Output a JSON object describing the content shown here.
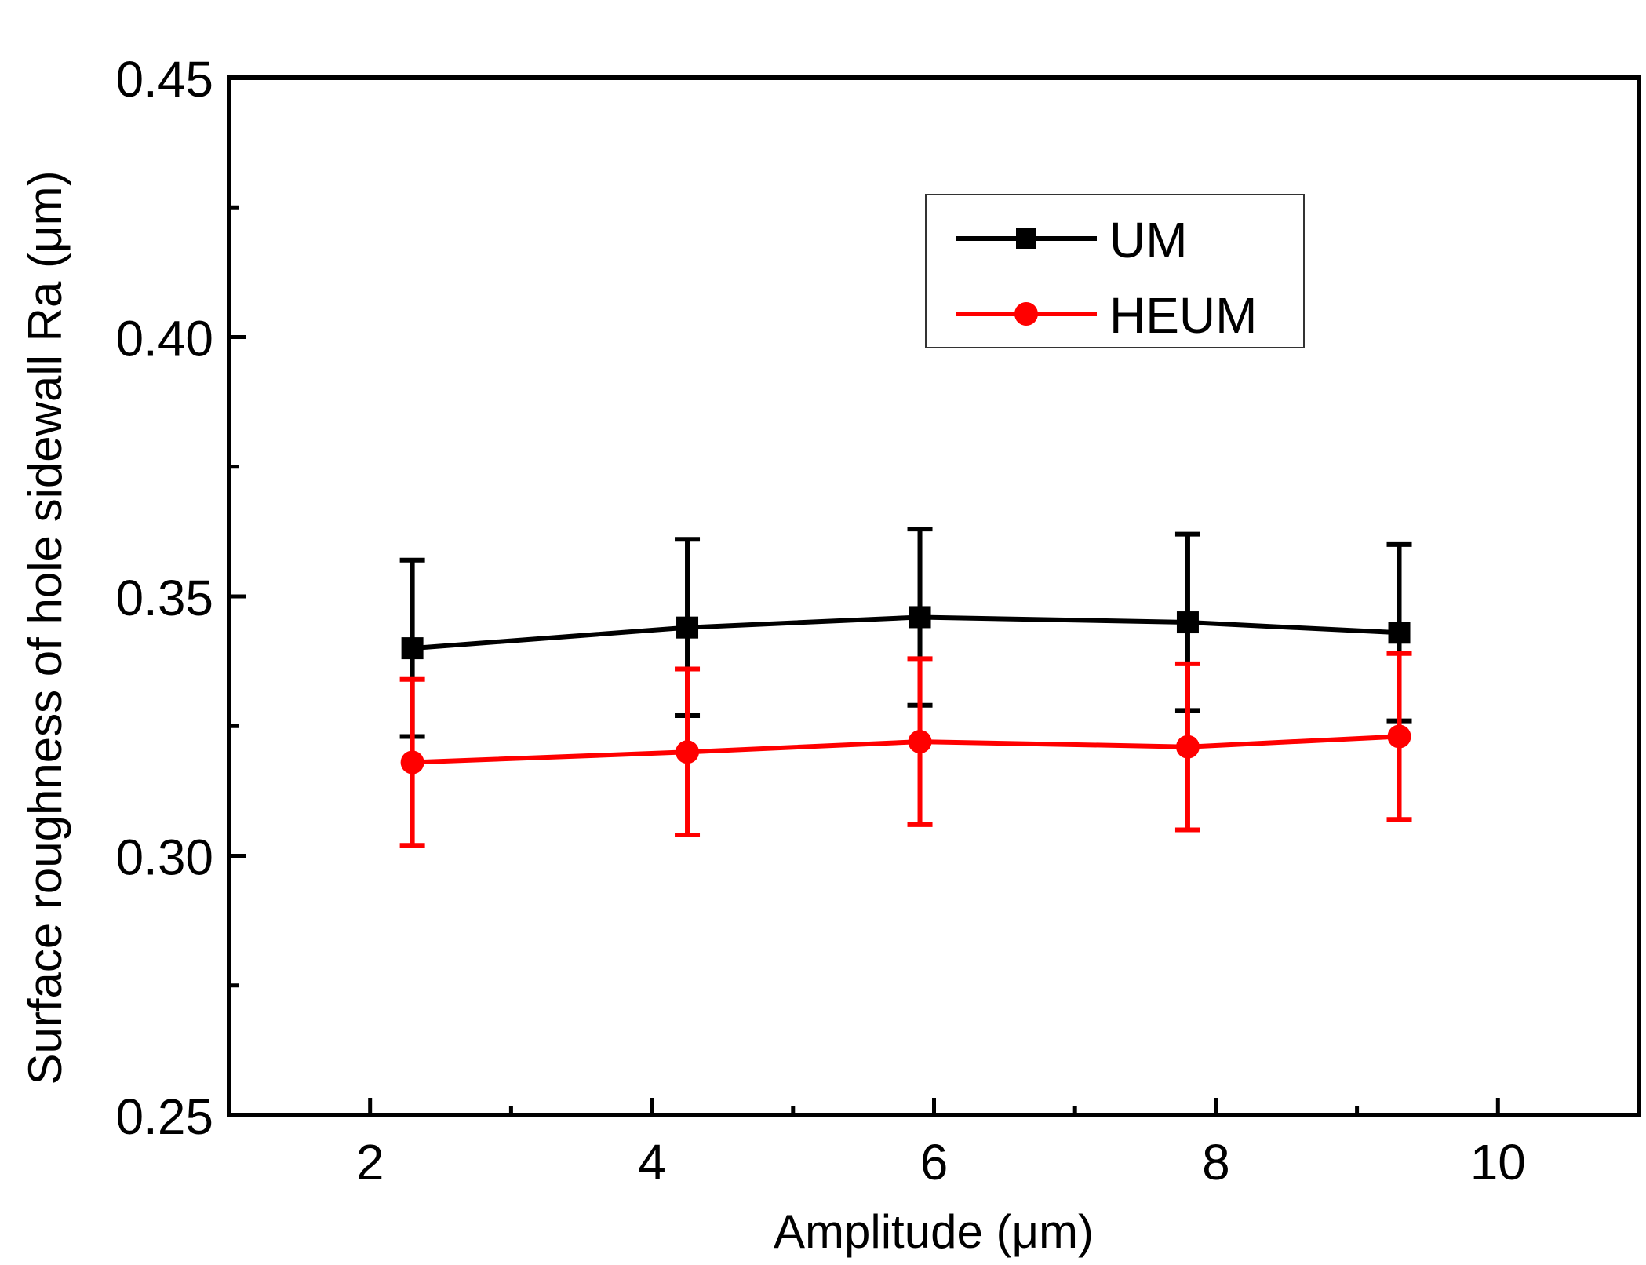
{
  "chart_data": {
    "type": "line",
    "title": "",
    "xlabel": "Amplitude (μm)",
    "ylabel": "Surface roughness of hole sidewall Ra (μm)",
    "xlim": [
      1,
      11
    ],
    "ylim": [
      0.25,
      0.45
    ],
    "x_ticks": [
      "2",
      "4",
      "6",
      "8",
      "10"
    ],
    "y_ticks": [
      "0.25",
      "0.30",
      "0.35",
      "0.40",
      "0.45"
    ],
    "legend_position": "top-right",
    "series": [
      {
        "name": "UM",
        "color": "#000000",
        "marker": "square",
        "x": [
          2.3,
          4.25,
          5.9,
          7.8,
          9.3
        ],
        "y": [
          0.34,
          0.344,
          0.346,
          0.345,
          0.343
        ],
        "error": [
          0.017,
          0.017,
          0.017,
          0.017,
          0.017
        ]
      },
      {
        "name": "HEUM",
        "color": "#ff0000",
        "marker": "circle",
        "x": [
          2.3,
          4.25,
          5.9,
          7.8,
          9.3
        ],
        "y": [
          0.318,
          0.32,
          0.322,
          0.321,
          0.323
        ],
        "error": [
          0.016,
          0.016,
          0.016,
          0.016,
          0.016
        ]
      }
    ]
  }
}
